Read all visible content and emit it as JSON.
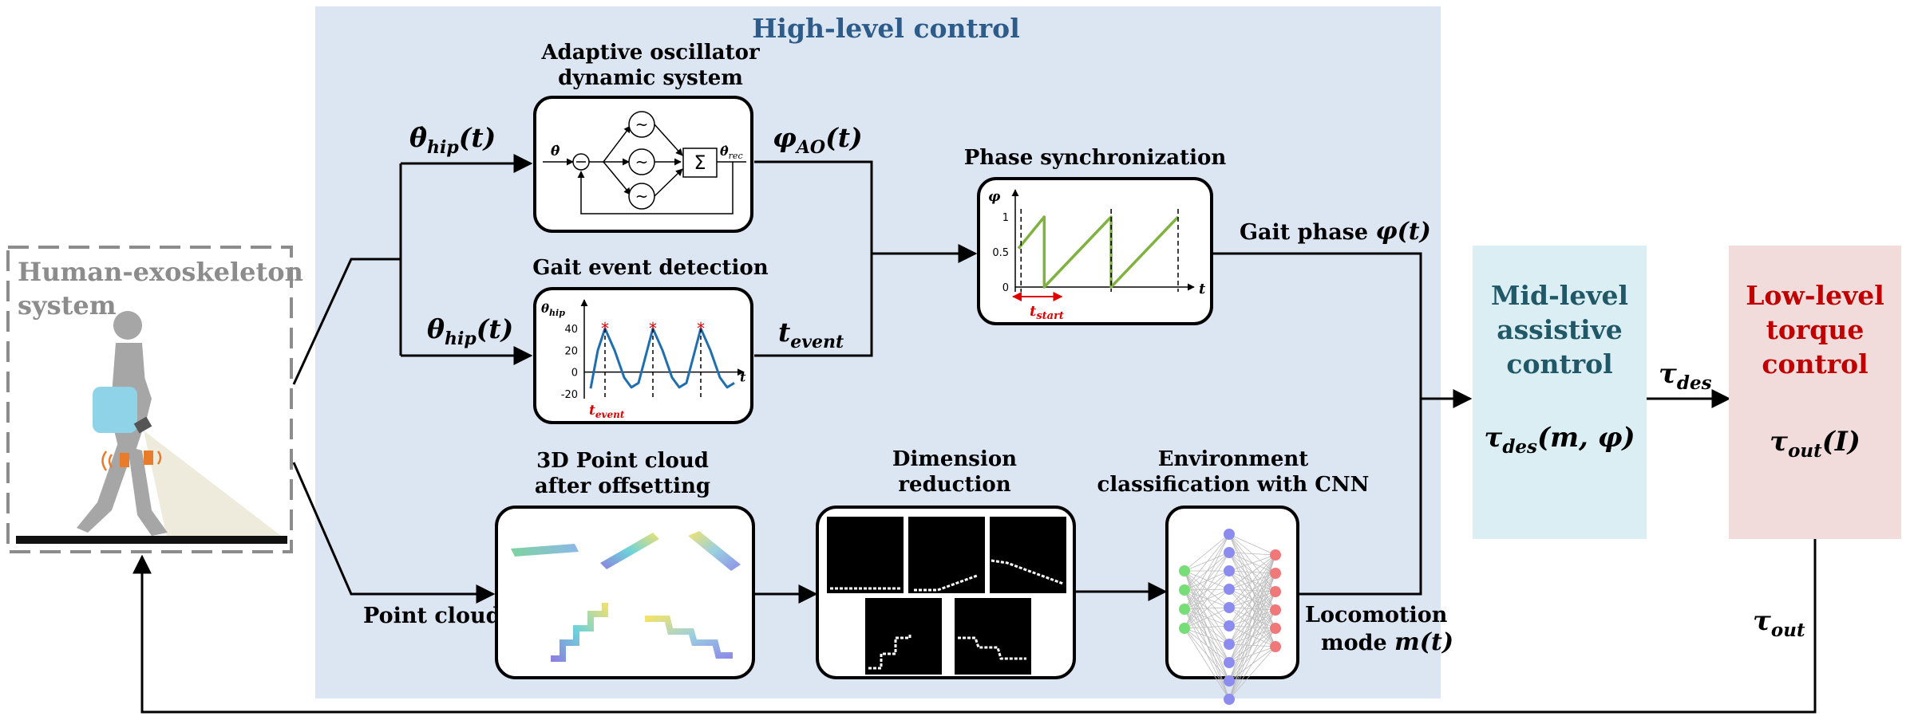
{
  "high_level": {
    "title": "High-level control",
    "adaptive_oscillator": {
      "title_l1": "Adaptive oscillator",
      "title_l2": "dynamic system",
      "input_sym": "θ̇",
      "output_sym": "θ̇",
      "output_sub": "rec",
      "sum_sym": "Σ",
      "sine_sym": "~"
    },
    "gait_event": {
      "title": "Gait event detection",
      "y_label": "θ",
      "y_label_sub": "hip",
      "x_label": "t",
      "y_ticks": [
        "40",
        "20",
        "0",
        "-20"
      ],
      "t_event": "t",
      "t_event_sub": "event",
      "chart_data": {
        "type": "line",
        "title": "",
        "ylabel": "θhip",
        "xlabel": "t",
        "ylim": [
          -20,
          40
        ],
        "y_ticks": [
          40,
          20,
          0,
          -20
        ],
        "series": [
          {
            "name": "",
            "x": [
              0,
              0.3,
              0.6,
              1.0,
              1.4,
              1.7,
              2.0,
              2.3,
              2.6,
              3.0,
              3.4,
              3.7,
              4.0,
              4.3,
              4.6,
              5.0,
              5.4,
              5.7,
              6.0
            ],
            "values": [
              -15,
              20,
              40,
              20,
              -5,
              -14,
              -10,
              15,
              40,
              20,
              -5,
              -14,
              -10,
              15,
              40,
              20,
              -5,
              -14,
              -10
            ]
          }
        ],
        "events_x": [
          0.6,
          2.6,
          4.6
        ]
      }
    },
    "phase_sync": {
      "title": "Phase synchronization",
      "y_label": "φ",
      "x_label": "t",
      "y_ticks": [
        "1",
        "0.5",
        "0"
      ],
      "t_start": "t",
      "t_start_sub": "start",
      "chart_data": {
        "type": "line",
        "title": "",
        "ylabel": "φ",
        "xlabel": "t",
        "ylim": [
          0,
          1
        ],
        "y_ticks": [
          1,
          0.5,
          0
        ],
        "series": [
          {
            "name": "",
            "x": [
              0,
              1.0,
              1.0,
              3.6,
              3.6,
              6.2
            ],
            "values": [
              0.55,
              1.0,
              0.0,
              1.0,
              0.0,
              1.0
            ]
          }
        ],
        "events_x": [
          0.1,
          3.6,
          6.2
        ]
      }
    },
    "point_cloud": {
      "title_l1": "3D Point cloud",
      "title_l2": "after offsetting"
    },
    "dim_reduction": {
      "title_l1": "Dimension",
      "title_l2": "reduction"
    },
    "env_class": {
      "title_l1": "Environment",
      "title_l2": "classification with CNN"
    }
  },
  "signals": {
    "theta_dot_hip": "θ̇",
    "theta_dot_hip_sub": "hip",
    "theta_dot_hip_arg": "(t)",
    "theta_hip": "θ",
    "theta_hip_sub": "hip",
    "theta_hip_arg": "(t)",
    "phi_ao": "φ",
    "phi_ao_sub": "AO",
    "phi_ao_arg": "(t)",
    "t_event": "t",
    "t_event_sub": "event",
    "gait_phase_text": "Gait phase ",
    "gait_phase_sym": "φ(t)",
    "point_cloud": "Point cloud",
    "locomotion_l1": "Locomotion",
    "locomotion_l2": "mode ",
    "locomotion_sym": "m(t)",
    "tau_des": "τ",
    "tau_des_sub": "des",
    "tau_out": "τ",
    "tau_out_sub": "out"
  },
  "human": {
    "title_l1": "Human-exoskeleton",
    "title_l2": "system"
  },
  "mid_level": {
    "l1": "Mid-level",
    "l2": "assistive",
    "l3": "control",
    "formula_sym": "τ",
    "formula_sub": "des",
    "formula_arg": "(m, φ)"
  },
  "low_level": {
    "l1": "Low-level",
    "l2": "torque",
    "l3": "control",
    "formula_sym": "τ",
    "formula_sub": "out",
    "formula_arg": "(I)"
  },
  "colors": {
    "high_panel": "#dce6f2",
    "high_title": "#2e5c8a",
    "mid_panel": "#daeef3",
    "mid_text": "#215868",
    "low_panel": "#f2dcdb",
    "low_text": "#c00000",
    "gait_curve": "#1f6fb0",
    "phase_curve": "#7fb23e",
    "event_red": "#e00000"
  }
}
